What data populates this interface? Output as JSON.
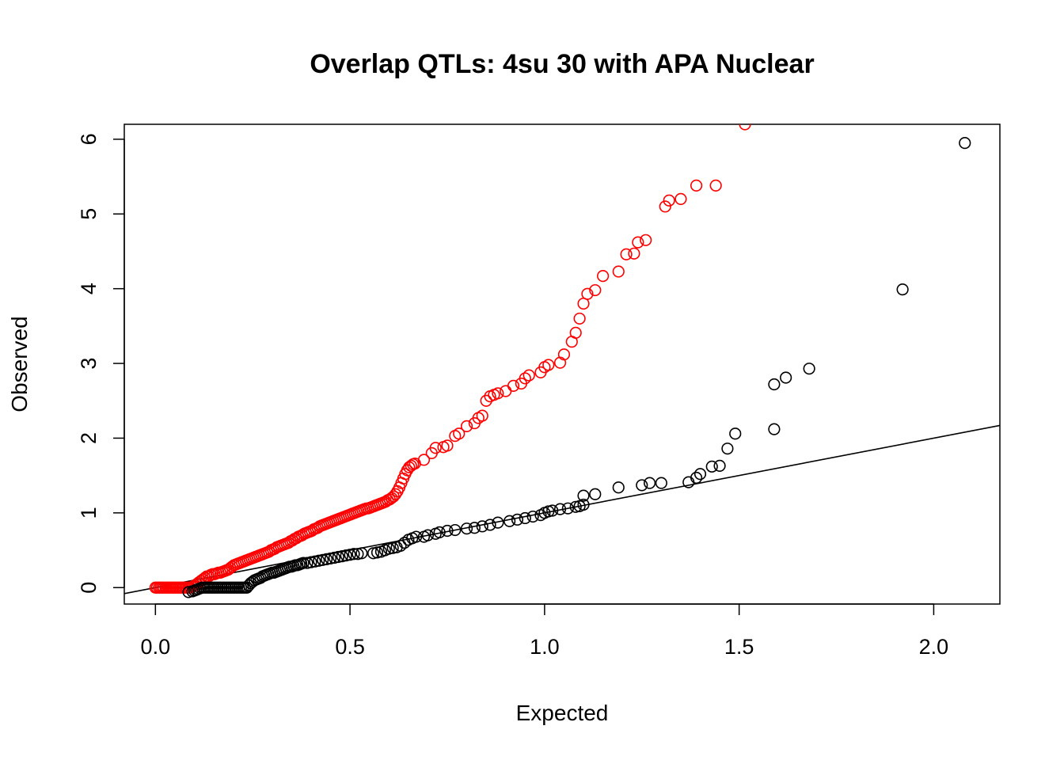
{
  "chart_data": {
    "type": "scatter",
    "title": "Overlap QTLs: 4su 30 with APA Nuclear",
    "xlabel": "Expected",
    "ylabel": "Observed",
    "xlim": [
      -0.08,
      2.17
    ],
    "ylim": [
      -0.22,
      6.2
    ],
    "x_ticks": [
      0.0,
      0.5,
      1.0,
      1.5,
      2.0
    ],
    "x_tick_labels": [
      "0.0",
      "0.5",
      "1.0",
      "1.5",
      "2.0"
    ],
    "y_ticks": [
      0,
      1,
      2,
      3,
      4,
      5,
      6
    ],
    "y_tick_labels": [
      "0",
      "1",
      "2",
      "3",
      "4",
      "5",
      "6"
    ],
    "grid": false,
    "reference_line": {
      "intercept": 0,
      "slope": 1,
      "color": "#000000"
    },
    "series": [
      {
        "color": "#ff0000",
        "marker": "open-circle",
        "points": [
          [
            0.0,
            0.0
          ],
          [
            0.004,
            0.0
          ],
          [
            0.009,
            0.0
          ],
          [
            0.013,
            0.0
          ],
          [
            0.017,
            0.0
          ],
          [
            0.021,
            0.0
          ],
          [
            0.026,
            0.0
          ],
          [
            0.03,
            0.0
          ],
          [
            0.034,
            0.0
          ],
          [
            0.038,
            0.0
          ],
          [
            0.043,
            0.0
          ],
          [
            0.047,
            0.0
          ],
          [
            0.051,
            0.0
          ],
          [
            0.055,
            0.0
          ],
          [
            0.06,
            0.0
          ],
          [
            0.064,
            0.0
          ],
          [
            0.068,
            0.0
          ],
          [
            0.072,
            0.0
          ],
          [
            0.077,
            0.0
          ],
          [
            0.081,
            0.0
          ],
          [
            0.085,
            0.0
          ],
          [
            0.089,
            0.0
          ],
          [
            0.094,
            0.01
          ],
          [
            0.098,
            0.02
          ],
          [
            0.102,
            0.03
          ],
          [
            0.107,
            0.05
          ],
          [
            0.112,
            0.07
          ],
          [
            0.117,
            0.09
          ],
          [
            0.122,
            0.11
          ],
          [
            0.127,
            0.13
          ],
          [
            0.132,
            0.15
          ],
          [
            0.137,
            0.15
          ],
          [
            0.142,
            0.17
          ],
          [
            0.147,
            0.18
          ],
          [
            0.152,
            0.18
          ],
          [
            0.157,
            0.19
          ],
          [
            0.162,
            0.2
          ],
          [
            0.167,
            0.2
          ],
          [
            0.172,
            0.21
          ],
          [
            0.177,
            0.22
          ],
          [
            0.182,
            0.23
          ],
          [
            0.187,
            0.24
          ],
          [
            0.192,
            0.26
          ],
          [
            0.197,
            0.28
          ],
          [
            0.202,
            0.3
          ],
          [
            0.207,
            0.31
          ],
          [
            0.212,
            0.32
          ],
          [
            0.217,
            0.33
          ],
          [
            0.222,
            0.34
          ],
          [
            0.227,
            0.35
          ],
          [
            0.232,
            0.36
          ],
          [
            0.237,
            0.37
          ],
          [
            0.242,
            0.38
          ],
          [
            0.247,
            0.39
          ],
          [
            0.252,
            0.4
          ],
          [
            0.257,
            0.41
          ],
          [
            0.262,
            0.42
          ],
          [
            0.267,
            0.43
          ],
          [
            0.272,
            0.44
          ],
          [
            0.277,
            0.45
          ],
          [
            0.282,
            0.46
          ],
          [
            0.287,
            0.47
          ],
          [
            0.292,
            0.48
          ],
          [
            0.297,
            0.5
          ],
          [
            0.302,
            0.51
          ],
          [
            0.307,
            0.52
          ],
          [
            0.312,
            0.54
          ],
          [
            0.317,
            0.55
          ],
          [
            0.322,
            0.56
          ],
          [
            0.327,
            0.57
          ],
          [
            0.332,
            0.58
          ],
          [
            0.337,
            0.59
          ],
          [
            0.342,
            0.6
          ],
          [
            0.347,
            0.62
          ],
          [
            0.352,
            0.63
          ],
          [
            0.357,
            0.65
          ],
          [
            0.362,
            0.66
          ],
          [
            0.367,
            0.68
          ],
          [
            0.372,
            0.69
          ],
          [
            0.377,
            0.7
          ],
          [
            0.382,
            0.72
          ],
          [
            0.387,
            0.73
          ],
          [
            0.392,
            0.74
          ],
          [
            0.397,
            0.75
          ],
          [
            0.402,
            0.76
          ],
          [
            0.407,
            0.78
          ],
          [
            0.412,
            0.79
          ],
          [
            0.417,
            0.8
          ],
          [
            0.422,
            0.82
          ],
          [
            0.427,
            0.83
          ],
          [
            0.432,
            0.84
          ],
          [
            0.437,
            0.85
          ],
          [
            0.442,
            0.86
          ],
          [
            0.447,
            0.87
          ],
          [
            0.452,
            0.88
          ],
          [
            0.457,
            0.89
          ],
          [
            0.462,
            0.9
          ],
          [
            0.467,
            0.91
          ],
          [
            0.472,
            0.92
          ],
          [
            0.477,
            0.93
          ],
          [
            0.482,
            0.94
          ],
          [
            0.487,
            0.95
          ],
          [
            0.492,
            0.96
          ],
          [
            0.497,
            0.97
          ],
          [
            0.502,
            0.98
          ],
          [
            0.507,
            0.99
          ],
          [
            0.512,
            1.0
          ],
          [
            0.517,
            1.01
          ],
          [
            0.522,
            1.02
          ],
          [
            0.527,
            1.03
          ],
          [
            0.532,
            1.04
          ],
          [
            0.537,
            1.05
          ],
          [
            0.542,
            1.06
          ],
          [
            0.547,
            1.06
          ],
          [
            0.552,
            1.07
          ],
          [
            0.557,
            1.08
          ],
          [
            0.562,
            1.09
          ],
          [
            0.567,
            1.1
          ],
          [
            0.572,
            1.11
          ],
          [
            0.577,
            1.12
          ],
          [
            0.582,
            1.13
          ],
          [
            0.587,
            1.14
          ],
          [
            0.592,
            1.15
          ],
          [
            0.597,
            1.17
          ],
          [
            0.602,
            1.18
          ],
          [
            0.607,
            1.2
          ],
          [
            0.612,
            1.22
          ],
          [
            0.617,
            1.25
          ],
          [
            0.622,
            1.29
          ],
          [
            0.627,
            1.34
          ],
          [
            0.632,
            1.4
          ],
          [
            0.637,
            1.46
          ],
          [
            0.642,
            1.52
          ],
          [
            0.647,
            1.57
          ],
          [
            0.652,
            1.61
          ],
          [
            0.657,
            1.63
          ],
          [
            0.662,
            1.65
          ],
          [
            0.667,
            1.66
          ],
          [
            0.69,
            1.71
          ],
          [
            0.71,
            1.8
          ],
          [
            0.72,
            1.87
          ],
          [
            0.74,
            1.88
          ],
          [
            0.75,
            1.9
          ],
          [
            0.77,
            2.03
          ],
          [
            0.78,
            2.06
          ],
          [
            0.8,
            2.16
          ],
          [
            0.82,
            2.2
          ],
          [
            0.83,
            2.27
          ],
          [
            0.84,
            2.3
          ],
          [
            0.85,
            2.5
          ],
          [
            0.86,
            2.56
          ],
          [
            0.87,
            2.58
          ],
          [
            0.88,
            2.6
          ],
          [
            0.9,
            2.63
          ],
          [
            0.92,
            2.7
          ],
          [
            0.94,
            2.73
          ],
          [
            0.95,
            2.8
          ],
          [
            0.96,
            2.84
          ],
          [
            0.99,
            2.88
          ],
          [
            1.0,
            2.95
          ],
          [
            1.01,
            2.98
          ],
          [
            1.04,
            3.01
          ],
          [
            1.05,
            3.12
          ],
          [
            1.07,
            3.29
          ],
          [
            1.08,
            3.41
          ],
          [
            1.09,
            3.6
          ],
          [
            1.1,
            3.8
          ],
          [
            1.11,
            3.93
          ],
          [
            1.13,
            3.98
          ],
          [
            1.15,
            4.17
          ],
          [
            1.19,
            4.23
          ],
          [
            1.21,
            4.46
          ],
          [
            1.23,
            4.47
          ],
          [
            1.24,
            4.62
          ],
          [
            1.26,
            4.65
          ],
          [
            1.31,
            5.1
          ],
          [
            1.32,
            5.18
          ],
          [
            1.35,
            5.2
          ],
          [
            1.39,
            5.38
          ],
          [
            1.44,
            5.38
          ],
          [
            1.515,
            6.2
          ]
        ]
      },
      {
        "color": "#000000",
        "marker": "open-circle",
        "points": [
          [
            0.085,
            -0.06
          ],
          [
            0.095,
            -0.05
          ],
          [
            0.1,
            -0.04
          ],
          [
            0.105,
            -0.03
          ],
          [
            0.11,
            -0.02
          ],
          [
            0.115,
            -0.01
          ],
          [
            0.12,
            0.0
          ],
          [
            0.125,
            0.0
          ],
          [
            0.13,
            0.0
          ],
          [
            0.135,
            0.0
          ],
          [
            0.14,
            0.0
          ],
          [
            0.145,
            0.0
          ],
          [
            0.15,
            0.0
          ],
          [
            0.155,
            0.0
          ],
          [
            0.16,
            0.0
          ],
          [
            0.165,
            0.0
          ],
          [
            0.17,
            0.0
          ],
          [
            0.175,
            0.0
          ],
          [
            0.18,
            0.0
          ],
          [
            0.185,
            0.0
          ],
          [
            0.19,
            0.0
          ],
          [
            0.195,
            0.0
          ],
          [
            0.2,
            0.0
          ],
          [
            0.205,
            0.0
          ],
          [
            0.21,
            0.0
          ],
          [
            0.215,
            0.0
          ],
          [
            0.22,
            0.0
          ],
          [
            0.225,
            0.0
          ],
          [
            0.23,
            0.0
          ],
          [
            0.235,
            0.0
          ],
          [
            0.24,
            0.03
          ],
          [
            0.245,
            0.06
          ],
          [
            0.25,
            0.08
          ],
          [
            0.255,
            0.1
          ],
          [
            0.26,
            0.11
          ],
          [
            0.265,
            0.12
          ],
          [
            0.27,
            0.13
          ],
          [
            0.275,
            0.15
          ],
          [
            0.28,
            0.16
          ],
          [
            0.285,
            0.17
          ],
          [
            0.29,
            0.18
          ],
          [
            0.295,
            0.19
          ],
          [
            0.3,
            0.2
          ],
          [
            0.305,
            0.2
          ],
          [
            0.31,
            0.21
          ],
          [
            0.315,
            0.22
          ],
          [
            0.32,
            0.23
          ],
          [
            0.325,
            0.24
          ],
          [
            0.33,
            0.25
          ],
          [
            0.335,
            0.26
          ],
          [
            0.34,
            0.27
          ],
          [
            0.345,
            0.28
          ],
          [
            0.35,
            0.28
          ],
          [
            0.355,
            0.29
          ],
          [
            0.36,
            0.3
          ],
          [
            0.365,
            0.3
          ],
          [
            0.37,
            0.31
          ],
          [
            0.375,
            0.32
          ],
          [
            0.38,
            0.33
          ],
          [
            0.39,
            0.33
          ],
          [
            0.4,
            0.34
          ],
          [
            0.41,
            0.35
          ],
          [
            0.42,
            0.36
          ],
          [
            0.43,
            0.37
          ],
          [
            0.44,
            0.38
          ],
          [
            0.45,
            0.39
          ],
          [
            0.46,
            0.4
          ],
          [
            0.47,
            0.41
          ],
          [
            0.48,
            0.42
          ],
          [
            0.49,
            0.43
          ],
          [
            0.5,
            0.44
          ],
          [
            0.51,
            0.45
          ],
          [
            0.52,
            0.45
          ],
          [
            0.53,
            0.46
          ],
          [
            0.56,
            0.46
          ],
          [
            0.57,
            0.47
          ],
          [
            0.58,
            0.48
          ],
          [
            0.59,
            0.5
          ],
          [
            0.6,
            0.52
          ],
          [
            0.61,
            0.53
          ],
          [
            0.62,
            0.54
          ],
          [
            0.63,
            0.56
          ],
          [
            0.64,
            0.6
          ],
          [
            0.65,
            0.64
          ],
          [
            0.66,
            0.66
          ],
          [
            0.67,
            0.68
          ],
          [
            0.69,
            0.68
          ],
          [
            0.7,
            0.7
          ],
          [
            0.72,
            0.72
          ],
          [
            0.73,
            0.74
          ],
          [
            0.75,
            0.76
          ],
          [
            0.77,
            0.77
          ],
          [
            0.8,
            0.79
          ],
          [
            0.82,
            0.8
          ],
          [
            0.84,
            0.82
          ],
          [
            0.86,
            0.84
          ],
          [
            0.88,
            0.87
          ],
          [
            0.91,
            0.89
          ],
          [
            0.93,
            0.91
          ],
          [
            0.95,
            0.93
          ],
          [
            0.97,
            0.95
          ],
          [
            0.99,
            0.97
          ],
          [
            1.0,
            1.0
          ],
          [
            1.01,
            1.02
          ],
          [
            1.02,
            1.03
          ],
          [
            1.04,
            1.05
          ],
          [
            1.06,
            1.06
          ],
          [
            1.08,
            1.08
          ],
          [
            1.09,
            1.09
          ],
          [
            1.1,
            1.11
          ],
          [
            1.1,
            1.23
          ],
          [
            1.13,
            1.25
          ],
          [
            1.19,
            1.34
          ],
          [
            1.25,
            1.37
          ],
          [
            1.27,
            1.4
          ],
          [
            1.3,
            1.4
          ],
          [
            1.37,
            1.41
          ],
          [
            1.39,
            1.47
          ],
          [
            1.4,
            1.52
          ],
          [
            1.43,
            1.62
          ],
          [
            1.45,
            1.63
          ],
          [
            1.47,
            1.86
          ],
          [
            1.49,
            2.06
          ],
          [
            1.59,
            2.12
          ],
          [
            1.59,
            2.72
          ],
          [
            1.62,
            2.81
          ],
          [
            1.68,
            2.93
          ],
          [
            1.92,
            3.99
          ],
          [
            2.08,
            5.95
          ]
        ]
      }
    ]
  }
}
